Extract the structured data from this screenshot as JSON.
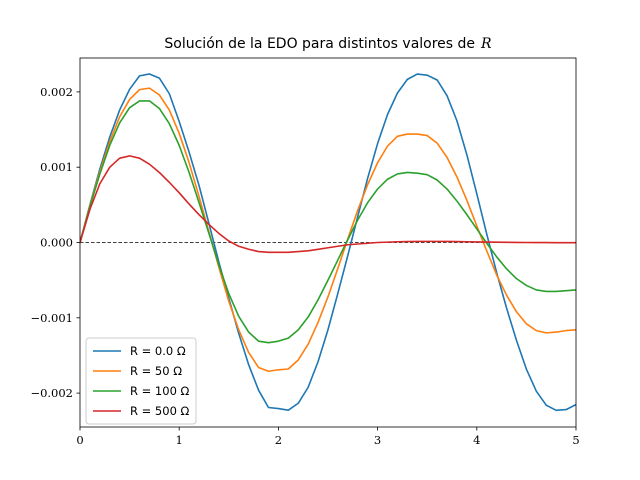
{
  "chart_data": {
    "type": "line",
    "title_text": "Solución de la EDO para distintos valores de",
    "title_variable": "R",
    "xlabel": "",
    "ylabel": "",
    "xlim": [
      0,
      5
    ],
    "ylim": [
      -0.00245,
      0.00245
    ],
    "x_ticks": [
      0,
      1,
      2,
      3,
      4,
      5
    ],
    "x_tick_labels": [
      "0",
      "1",
      "2",
      "3",
      "4",
      "5"
    ],
    "y_ticks": [
      -0.002,
      -0.001,
      0.0,
      0.001,
      0.002
    ],
    "y_tick_labels": [
      "−0.002",
      "−0.001",
      "0.000",
      "0.001",
      "0.002"
    ],
    "grid": false,
    "zero_line": {
      "y": 0,
      "style": "dashed",
      "color": "#000000"
    },
    "legend_position": "lower-left",
    "series": [
      {
        "name": "R = 0.0 Ω",
        "color": "#1f77b4",
        "x": [
          0,
          0.1,
          0.2,
          0.3,
          0.4,
          0.5,
          0.6,
          0.7,
          0.8,
          0.9,
          1.0,
          1.1,
          1.2,
          1.3,
          1.4,
          1.5,
          1.6,
          1.7,
          1.8,
          1.9,
          2.0,
          2.1,
          2.2,
          2.3,
          2.4,
          2.5,
          2.6,
          2.7,
          2.8,
          2.9,
          3.0,
          3.1,
          3.2,
          3.3,
          3.4,
          3.5,
          3.6,
          3.7,
          3.8,
          3.9,
          4.0,
          4.1,
          4.2,
          4.3,
          4.4,
          4.5,
          4.6,
          4.7,
          4.8,
          4.9,
          5.0
        ],
        "values": [
          0,
          0.0005,
          0.000975,
          0.001401,
          0.00176,
          0.002034,
          0.002213,
          0.002238,
          0.002183,
          0.001977,
          0.001607,
          0.001199,
          0.000757,
          0.000252,
          -0.000261,
          -0.00074,
          -0.001207,
          -0.001622,
          -0.001961,
          -0.002191,
          -0.002205,
          -0.002227,
          -0.002135,
          -0.001922,
          -0.001582,
          -0.001157,
          -0.000671,
          -0.000171,
          0.000346,
          0.000855,
          0.001314,
          0.0017,
          0.001985,
          0.002166,
          0.002237,
          0.002222,
          0.002158,
          0.00195,
          0.001615,
          0.001164,
          0.000646,
          0.000114,
          -0.0004,
          -0.00087,
          -0.0013,
          -0.001682,
          -0.001974,
          -0.00216,
          -0.002228,
          -0.002219,
          -0.002153
        ]
      },
      {
        "name": "R = 50 Ω",
        "color": "#ff7f0e",
        "x": [
          0,
          0.1,
          0.2,
          0.3,
          0.4,
          0.5,
          0.6,
          0.7,
          0.8,
          0.9,
          1.0,
          1.1,
          1.2,
          1.3,
          1.4,
          1.5,
          1.6,
          1.7,
          1.8,
          1.9,
          2.0,
          2.1,
          2.2,
          2.3,
          2.4,
          2.5,
          2.6,
          2.7,
          2.8,
          2.9,
          3.0,
          3.1,
          3.2,
          3.3,
          3.4,
          3.5,
          3.6,
          3.7,
          3.8,
          3.9,
          4.0,
          4.1,
          4.2,
          4.3,
          4.4,
          4.5,
          4.6,
          4.7,
          4.8,
          4.9,
          5.0
        ],
        "values": [
          0,
          0.00049,
          0.00094,
          0.00134,
          0.00167,
          0.0019,
          0.00203,
          0.00205,
          0.00196,
          0.00176,
          0.00145,
          0.00106,
          0.00061,
          0.00014,
          -0.00033,
          -0.00078,
          -0.00116,
          -0.00146,
          -0.00166,
          -0.00171,
          -0.00169,
          -0.00168,
          -0.00156,
          -0.00135,
          -0.00106,
          -0.00072,
          -0.00034,
          5e-05,
          0.00043,
          0.00077,
          0.00106,
          0.00128,
          0.00141,
          0.00144,
          0.00144,
          0.00142,
          0.00132,
          0.00113,
          0.00087,
          0.00056,
          0.00022,
          -0.00011,
          -0.00043,
          -0.0007,
          -0.00092,
          -0.00108,
          -0.00117,
          -0.0012,
          -0.00119,
          -0.00117,
          -0.00116
        ]
      },
      {
        "name": "R = 100 Ω",
        "color": "#2ca02c",
        "x": [
          0,
          0.1,
          0.2,
          0.3,
          0.4,
          0.5,
          0.6,
          0.7,
          0.8,
          0.9,
          1.0,
          1.1,
          1.2,
          1.3,
          1.4,
          1.5,
          1.6,
          1.7,
          1.8,
          1.9,
          2.0,
          2.1,
          2.2,
          2.3,
          2.4,
          2.5,
          2.6,
          2.7,
          2.8,
          2.9,
          3.0,
          3.1,
          3.2,
          3.3,
          3.4,
          3.5,
          3.6,
          3.7,
          3.8,
          3.9,
          4.0,
          4.1,
          4.2,
          4.3,
          4.4,
          4.5,
          4.6,
          4.7,
          4.8,
          4.9,
          5.0
        ],
        "values": [
          0,
          0.00048,
          0.00091,
          0.00129,
          0.00159,
          0.00179,
          0.00188,
          0.00188,
          0.00178,
          0.00158,
          0.00129,
          0.00093,
          0.00053,
          0.00012,
          -0.0003,
          -0.00068,
          -0.00098,
          -0.00119,
          -0.00131,
          -0.00133,
          -0.00131,
          -0.00127,
          -0.00116,
          -0.00099,
          -0.00076,
          -0.0005,
          -0.00023,
          4e-05,
          0.0003,
          0.00053,
          0.00071,
          0.00084,
          0.00091,
          0.00093,
          0.00092,
          0.0009,
          0.00083,
          0.00071,
          0.00055,
          0.00037,
          0.00018,
          -1e-05,
          -0.00019,
          -0.00035,
          -0.00048,
          -0.00057,
          -0.00063,
          -0.00065,
          -0.00065,
          -0.00064,
          -0.00063
        ]
      },
      {
        "name": "R = 500 Ω",
        "color": "#d62728",
        "x": [
          0,
          0.1,
          0.2,
          0.3,
          0.4,
          0.5,
          0.6,
          0.7,
          0.8,
          0.9,
          1.0,
          1.1,
          1.2,
          1.3,
          1.4,
          1.5,
          1.6,
          1.7,
          1.8,
          1.9,
          2.0,
          2.1,
          2.2,
          2.3,
          2.4,
          2.5,
          2.6,
          2.7,
          2.8,
          2.9,
          3.0,
          3.1,
          3.2,
          3.3,
          3.4,
          3.5,
          3.6,
          3.7,
          3.8,
          3.9,
          4.0,
          4.1,
          4.2,
          4.3,
          4.4,
          4.5,
          4.6,
          4.7,
          4.8,
          4.9,
          5.0
        ],
        "values": [
          0,
          0.00044,
          0.00078,
          0.001,
          0.00112,
          0.00115,
          0.00112,
          0.00104,
          0.00093,
          0.0008,
          0.00066,
          0.00051,
          0.00037,
          0.00024,
          0.00012,
          2e-05,
          -5e-05,
          -9e-05,
          -0.00012,
          -0.00013,
          -0.00013,
          -0.00013,
          -0.00012,
          -0.00011,
          -9e-05,
          -7e-05,
          -5e-05,
          -3e-05,
          -2e-05,
          -1e-05,
          0.0,
          5e-06,
          1e-05,
          1.2e-05,
          1.4e-05,
          1.5e-05,
          1.5e-05,
          1.4e-05,
          1.2e-05,
          1e-05,
          8e-06,
          6e-06,
          4e-06,
          2e-06,
          1e-06,
          0.0,
          -1e-06,
          -1e-06,
          -2e-06,
          -2e-06,
          -2e-06
        ]
      }
    ]
  }
}
